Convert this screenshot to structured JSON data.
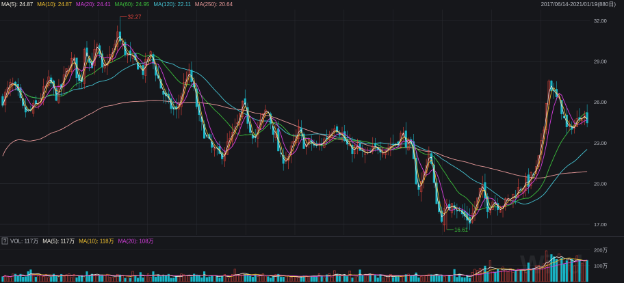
{
  "colors": {
    "background": "#16171b",
    "grid": "#2a2c33",
    "up": "#e8453c",
    "down": "#19b6c7",
    "text": "#b9bcc4",
    "ma5": "#f5f1e6",
    "ma10": "#f2c230",
    "ma20": "#d83fe0",
    "ma60": "#3bbd3b",
    "ma120": "#45c3d3",
    "ma250": "#e89a9a",
    "vol_ma5": "#f5f1e6",
    "vol_ma10": "#f2c230",
    "vol_ma20": "#d83fe0"
  },
  "price_panel": {
    "legend": [
      {
        "key": "ma5",
        "label": "MA(5): 24.87"
      },
      {
        "key": "ma10",
        "label": "MA(10): 24.87"
      },
      {
        "key": "ma20",
        "label": "MA(20): 24.41"
      },
      {
        "key": "ma60",
        "label": "MA(60): 24.95"
      },
      {
        "key": "ma120",
        "label": "MA(120): 22.11"
      },
      {
        "key": "ma250",
        "label": "MA(250): 20.64"
      }
    ],
    "date_range": "2017/06/14-2021/01/19(880日)",
    "high_label": "32.27",
    "low_label": "16.61"
  },
  "volume_panel": {
    "help_icon": "?",
    "legend": [
      {
        "key": "vol",
        "label": "VOL: 117万"
      },
      {
        "key": "vol_ma5",
        "label": "MA(5): 117万"
      },
      {
        "key": "vol_ma10",
        "label": "MA(10): 118万"
      },
      {
        "key": "vol_ma20",
        "label": "MA(20): 108万"
      }
    ]
  },
  "watermark": "Wind",
  "chart_data": {
    "type": "candlestick",
    "sessions": 880,
    "date_start": "2017/06/14",
    "date_end": "2021/01/19",
    "price_axis": {
      "ticks": [
        17.0,
        20.0,
        23.0,
        26.0,
        29.0,
        32.0
      ],
      "ylim": [
        16.2,
        32.8
      ]
    },
    "volume_axis": {
      "ticks": [
        "100万",
        "200万"
      ],
      "ylim": [
        0,
        215
      ]
    },
    "price_path": [
      [
        0,
        26.2
      ],
      [
        3,
        27.3
      ],
      [
        5,
        26.6
      ],
      [
        7,
        25.4
      ],
      [
        9,
        25.2
      ],
      [
        12,
        25.9
      ],
      [
        14,
        26.8
      ],
      [
        16,
        27.6
      ],
      [
        18,
        26.4
      ],
      [
        20,
        27.1
      ],
      [
        22,
        28.4
      ],
      [
        24,
        29.2
      ],
      [
        26,
        27.4
      ],
      [
        27,
        27.8
      ],
      [
        28,
        30.6
      ],
      [
        29,
        29.4
      ],
      [
        30,
        28.5
      ],
      [
        32,
        30.1
      ],
      [
        33,
        29.2
      ],
      [
        34,
        28.1
      ],
      [
        36,
        29.3
      ],
      [
        38,
        29.6
      ],
      [
        39,
        31.3
      ],
      [
        40,
        30.4
      ],
      [
        42,
        29.6
      ],
      [
        44,
        29.0
      ],
      [
        46,
        28.8
      ],
      [
        48,
        28.2
      ],
      [
        50,
        29.7
      ],
      [
        51,
        29.0
      ],
      [
        53,
        27.7
      ],
      [
        54,
        27.0
      ],
      [
        56,
        26.0
      ],
      [
        59,
        25.2
      ],
      [
        61,
        26.7
      ],
      [
        63,
        28.3
      ],
      [
        65,
        27.0
      ],
      [
        67,
        24.6
      ],
      [
        69,
        23.6
      ],
      [
        71,
        22.6
      ],
      [
        74,
        22.0
      ],
      [
        76,
        22.6
      ],
      [
        78,
        23.4
      ],
      [
        80,
        24.3
      ],
      [
        82,
        25.9
      ],
      [
        84,
        24.2
      ],
      [
        86,
        23.4
      ],
      [
        88,
        24.6
      ],
      [
        90,
        25.5
      ],
      [
        92,
        24.0
      ],
      [
        93,
        23.5
      ],
      [
        94,
        22.3
      ],
      [
        95,
        21.6
      ],
      [
        96,
        22.1
      ],
      [
        97,
        21.9
      ],
      [
        99,
        22.8
      ],
      [
        101,
        23.9
      ],
      [
        103,
        22.7
      ],
      [
        105,
        23.0
      ],
      [
        107,
        22.6
      ],
      [
        109,
        23.1
      ],
      [
        111,
        23.6
      ],
      [
        113,
        24.4
      ],
      [
        115,
        23.8
      ],
      [
        117,
        22.9
      ],
      [
        118,
        22.5
      ],
      [
        120,
        22.6
      ],
      [
        122,
        22.3
      ],
      [
        124,
        21.9
      ],
      [
        126,
        22.4
      ],
      [
        128,
        22.8
      ],
      [
        130,
        22.5
      ],
      [
        132,
        22.8
      ],
      [
        134,
        23.0
      ],
      [
        136,
        23.7
      ],
      [
        137,
        23.2
      ],
      [
        139,
        22.6
      ],
      [
        140,
        21.4
      ],
      [
        141,
        20.0
      ],
      [
        142,
        19.6
      ],
      [
        144,
        21.3
      ],
      [
        145,
        22.6
      ],
      [
        146,
        21.3
      ],
      [
        147,
        19.5
      ],
      [
        148,
        18.6
      ],
      [
        149,
        17.4
      ],
      [
        150,
        17.8
      ],
      [
        152,
        18.2
      ],
      [
        153,
        18.9
      ],
      [
        154,
        18.4
      ],
      [
        156,
        17.8
      ],
      [
        157,
        17.6
      ],
      [
        159,
        17.3
      ],
      [
        161,
        18.3
      ],
      [
        163,
        19.8
      ],
      [
        165,
        18.3
      ],
      [
        167,
        18.8
      ],
      [
        169,
        18.4
      ],
      [
        171,
        18.5
      ],
      [
        173,
        18.9
      ],
      [
        175,
        19.4
      ],
      [
        177,
        19.9
      ],
      [
        179,
        20.1
      ],
      [
        181,
        20.8
      ],
      [
        182,
        21.1
      ],
      [
        183,
        22.4
      ],
      [
        184,
        23.4
      ],
      [
        185,
        26.2
      ],
      [
        186,
        27.6
      ],
      [
        187,
        27.0
      ],
      [
        188,
        26.4
      ],
      [
        189,
        26.1
      ],
      [
        190,
        25.8
      ],
      [
        191,
        24.8
      ],
      [
        192,
        24.0
      ],
      [
        193,
        23.9
      ],
      [
        194,
        24.5
      ],
      [
        195,
        24.1
      ],
      [
        196,
        25.0
      ],
      [
        197,
        25.4
      ],
      [
        198,
        24.9
      ],
      [
        199,
        24.87
      ]
    ],
    "price_extremes": {
      "high": {
        "x": 40,
        "y": 32.27
      },
      "low": {
        "x": 151,
        "y": 16.61
      }
    }
  }
}
